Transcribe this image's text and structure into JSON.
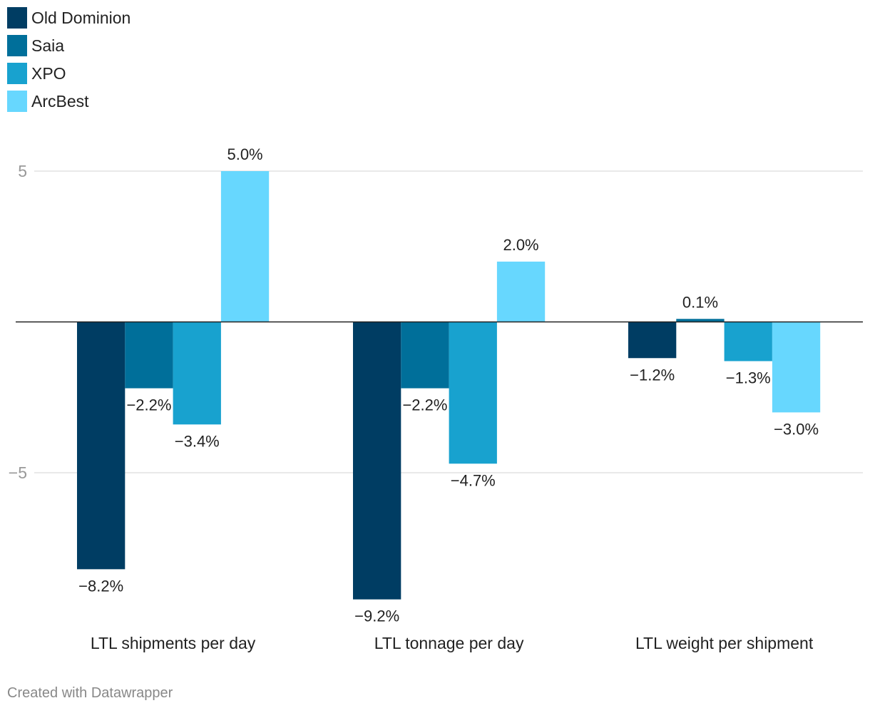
{
  "chart_data": {
    "type": "bar",
    "categories": [
      "LTL shipments per day",
      "LTL tonnage per day",
      "LTL weight per shipment"
    ],
    "series": [
      {
        "name": "Old Dominion",
        "color": "#003d63",
        "values": [
          -8.2,
          -9.2,
          -1.2
        ],
        "labels": [
          "−8.2%",
          "−9.2%",
          "−1.2%"
        ]
      },
      {
        "name": "Saia",
        "color": "#006f9a",
        "values": [
          -2.2,
          -2.2,
          0.1
        ],
        "labels": [
          "−2.2%",
          "−2.2%",
          "0.1%"
        ]
      },
      {
        "name": "XPO",
        "color": "#18a2cf",
        "values": [
          -3.4,
          -4.7,
          -1.3
        ],
        "labels": [
          "−3.4%",
          "−4.7%",
          "−1.3%"
        ]
      },
      {
        "name": "ArcBest",
        "color": "#67d7fe",
        "values": [
          5.0,
          2.0,
          -3.0
        ],
        "labels": [
          "5.0%",
          "2.0%",
          "−3.0%"
        ]
      }
    ],
    "y_ticks": [
      {
        "value": 5,
        "label": "5"
      },
      {
        "value": -5,
        "label": "−5"
      }
    ],
    "ylim": [
      -9.6,
      5.0
    ],
    "grid": true,
    "legend_position": "top-left",
    "title": "",
    "xlabel": "",
    "ylabel": ""
  },
  "footer": {
    "credit": "Created with Datawrapper"
  }
}
